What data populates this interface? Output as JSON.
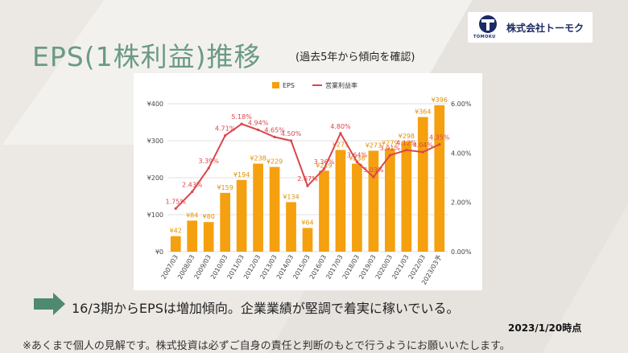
{
  "header": {
    "title": "EPS(1株利益)推移",
    "subtitle": "(過去5年から傾向を確認)"
  },
  "logo": {
    "name": "株式会社トーモク",
    "sub": "TOMOKU",
    "color": "#1b2a63"
  },
  "chart_data": {
    "type": "bar",
    "categories": [
      "2007/03",
      "2008/03",
      "2009/03",
      "2010/03",
      "2011/03",
      "2012/03",
      "2013/03",
      "2014/03",
      "2015/03",
      "2016/03",
      "2017/03",
      "2018/03",
      "2019/03",
      "2020/03",
      "2021/03",
      "2022/03",
      "2023/03予"
    ],
    "series": [
      {
        "name": "EPS",
        "type": "bar",
        "axis": "left",
        "color": "#f5a00f",
        "values": [
          42,
          84,
          80,
          159,
          194,
          238,
          229,
          134,
          64,
          219,
          275,
          238,
          273,
          279,
          298,
          364,
          396
        ],
        "labels": [
          "¥42",
          "¥84",
          "¥80",
          "¥159",
          "¥194",
          "¥238",
          "¥229",
          "¥134",
          "¥64",
          "¥219",
          "¥275",
          "¥238",
          "¥273",
          "¥279",
          "¥298",
          "¥364",
          "¥396"
        ]
      },
      {
        "name": "営業利益率",
        "type": "line",
        "axis": "right",
        "color": "#d9464b",
        "values": [
          1.75,
          2.43,
          3.39,
          4.71,
          5.18,
          4.94,
          4.65,
          4.5,
          2.67,
          3.36,
          4.8,
          3.64,
          3.03,
          3.91,
          4.12,
          4.04,
          4.35
        ],
        "labels": [
          "1.75%",
          "2.43%",
          "3.39%",
          "4.71%",
          "5.18%",
          "4.94%",
          "4.65%",
          "4.50%",
          "2.67%",
          "3.36%",
          "4.80%",
          "3.64%",
          "3.03%",
          "3.91%",
          "4.12%",
          "4.04%",
          "4.35%"
        ]
      }
    ],
    "y_left": {
      "min": 0,
      "max": 400,
      "ticks": [
        0,
        100,
        200,
        300,
        400
      ],
      "tick_labels": [
        "¥0",
        "¥100",
        "¥200",
        "¥300",
        "¥400"
      ]
    },
    "y_right": {
      "min": 0,
      "max": 6,
      "ticks": [
        0,
        2,
        4,
        6
      ],
      "tick_labels": [
        "0.00%",
        "2.00%",
        "4.00%",
        "6.00%"
      ]
    },
    "grid": true,
    "legend_position": "top-center"
  },
  "summary": {
    "text": "16/3期からEPSは増加傾向。企業業績が堅調で着実に稼いでいる。",
    "arrow_color": "#4f8a6e"
  },
  "date_stamp": "2023/1/20時点",
  "disclaimer": "※あくまで個人の見解です。株式投資は必ずご自身の責任と判断のもとで行うようにお願いいたします。"
}
